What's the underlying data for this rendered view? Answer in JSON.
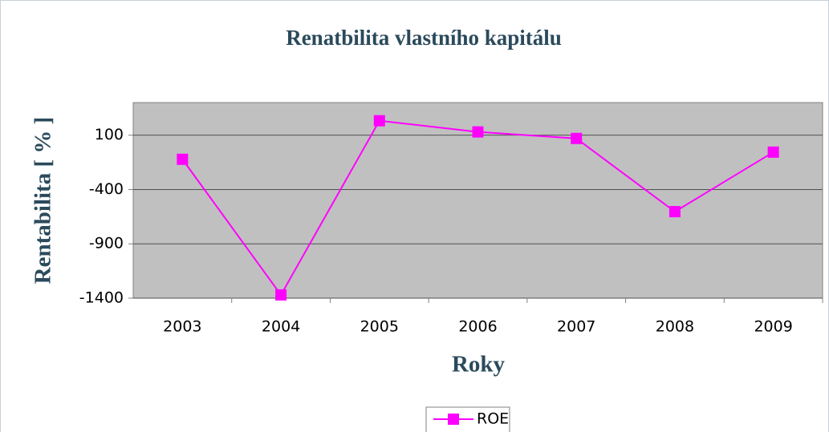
{
  "chart_data": {
    "type": "line",
    "title": "Renatbilita vlastního kapitálu",
    "x_label": "Roky",
    "y_label": "Rentabilita [ % ]",
    "categories": [
      "2003",
      "2004",
      "2005",
      "2006",
      "2007",
      "2008",
      "2009"
    ],
    "series": [
      {
        "name": "ROE",
        "color": "#ff00ff",
        "values": [
          -122,
          -1370,
          233,
          130,
          70,
          -604,
          -56
        ]
      }
    ],
    "ylim": [
      -1400,
      400
    ],
    "yticks": [
      -1400,
      -900,
      -400,
      100
    ],
    "grid": true,
    "legend": "bottom"
  }
}
